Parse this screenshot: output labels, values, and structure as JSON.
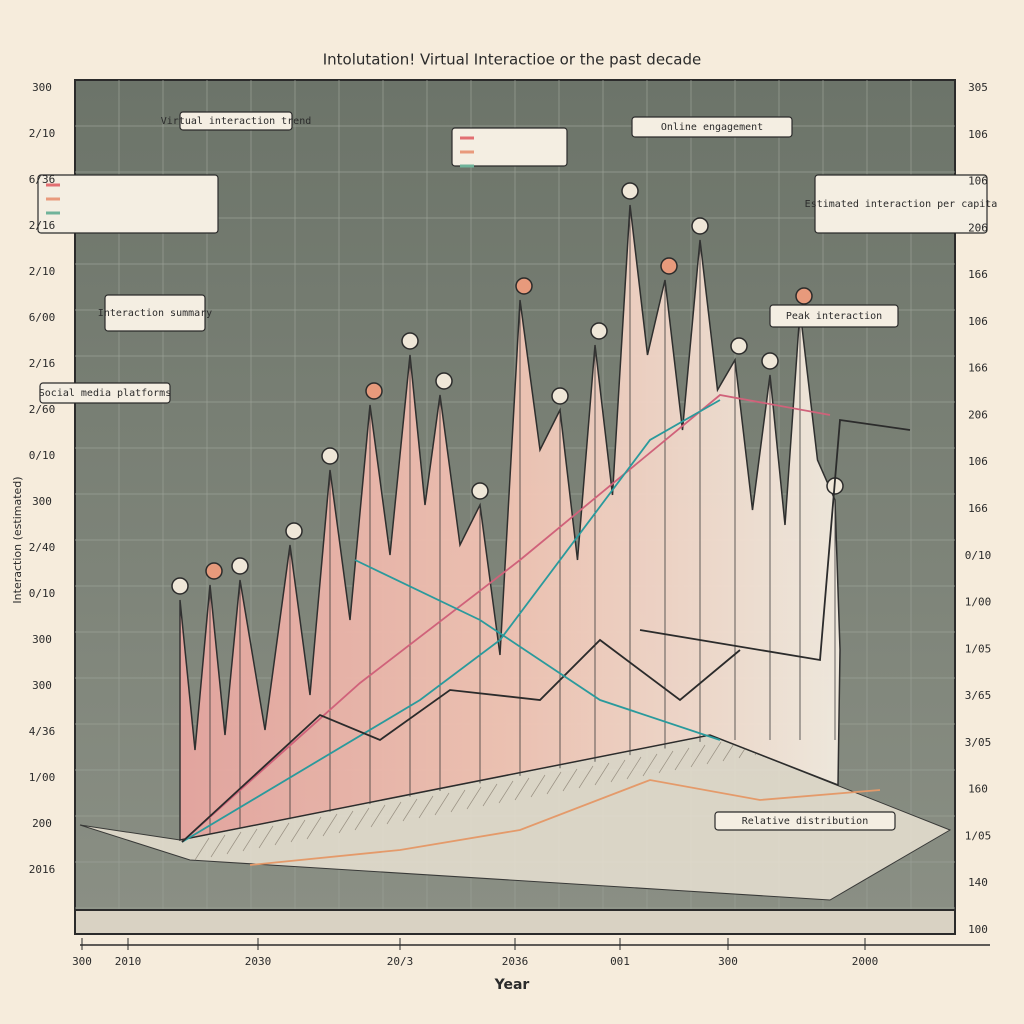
{
  "header": {
    "title": "Intolutation! Virtual Interactioe or the past decade"
  },
  "axes": {
    "x_label": "Year",
    "y_label": "Interaction (estimated)",
    "left_ticks": [
      "300",
      "2/10",
      "6/36",
      "2/16",
      "2/10",
      "6/00",
      "2/16",
      "2/60",
      "0/10",
      "300",
      "2/40",
      "0/10",
      "300",
      "300",
      "4/36",
      "1/00",
      "200",
      "2016"
    ],
    "right_ticks": [
      "305",
      "106",
      "106",
      "206",
      "166",
      "106",
      "166",
      "206",
      "106",
      "166",
      "0/10",
      "1/00",
      "1/05",
      "3/65",
      "3/05",
      "160",
      "1/05",
      "140",
      "100"
    ],
    "x_ticks": [
      "300",
      "2010",
      "2030",
      "20/3",
      "2036",
      "001",
      "300",
      "2000"
    ]
  },
  "callouts": [
    {
      "text": "Virtual interaction trend"
    },
    {
      "text": "Online engagement"
    },
    {
      "text": "Interaction summary"
    },
    {
      "text": "Social media platforms"
    },
    {
      "text": "Peak interaction"
    },
    {
      "text": "Relative distribution"
    },
    {
      "text": "Estimated interaction per capita"
    }
  ]
}
